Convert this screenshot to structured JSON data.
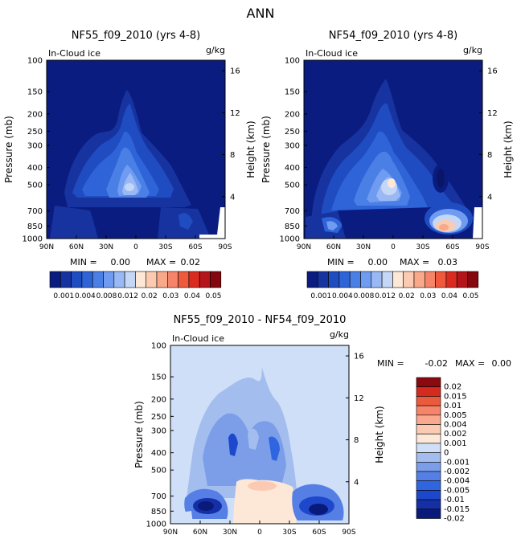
{
  "figure_title": "ANN",
  "units": "g/kg",
  "left_axis_title": "Pressure (mb)",
  "right_axis_title": "Height (km)",
  "colors": {
    "background_navy": "#0a1c80",
    "levels_abs": [
      "#0a1c80",
      "#1733a0",
      "#1f4cc0",
      "#2e64d8",
      "#4a7fe6",
      "#6f9bf0",
      "#9ab9f4",
      "#c5d7f6",
      "#fde7d6",
      "#fccab0",
      "#f9a98a",
      "#f6846a",
      "#ef5a3c",
      "#d92b20",
      "#b5141b",
      "#85080f"
    ],
    "levels_diff": [
      "#091a7a",
      "#1530a6",
      "#1e48cc",
      "#2f66e0",
      "#557fe4",
      "#7c9ee8",
      "#a3bdee",
      "#cfdff7",
      "#fde8d8",
      "#fccab2",
      "#fba98e",
      "#f5846a",
      "#ec5a3d",
      "#d42b1e",
      "#8a0a10"
    ]
  },
  "chart_data": [
    {
      "type": "heatmap",
      "title": "NF55_f09_2010 (yrs 4-8)",
      "subtitle": "In-Cloud ice",
      "xlabel": "",
      "ylabel": "Pressure (mb)",
      "y2label": "Height (km)",
      "x_ticks": [
        "90N",
        "60N",
        "30N",
        "0",
        "30S",
        "60S",
        "90S"
      ],
      "x_values": [
        90,
        60,
        30,
        0,
        -30,
        -60,
        -90
      ],
      "y_ticks": [
        100,
        150,
        200,
        250,
        300,
        400,
        500,
        700,
        850,
        1000
      ],
      "y_right_ticks": [
        16,
        12,
        8,
        4
      ],
      "ylim": [
        1000,
        100
      ],
      "stats": {
        "min_label": "MIN =",
        "min": "0.00",
        "max_label": "MAX =",
        "max": "0.02"
      },
      "colorbar_ticks": [
        "0.001",
        "0.004",
        "0.008",
        "0.012",
        "0.02",
        "0.03",
        "0.04",
        "0.05"
      ],
      "blobs": [
        {
          "lat": 0,
          "p": 500,
          "value": 0.012
        },
        {
          "lat": -20,
          "p": 700,
          "value": 0.004
        },
        {
          "lat": 60,
          "p": 700,
          "value": 0.003
        }
      ]
    },
    {
      "type": "heatmap",
      "title": "NF54_f09_2010 (yrs 4-8)",
      "subtitle": "In-Cloud ice",
      "xlabel": "",
      "ylabel": "Pressure (mb)",
      "y2label": "Height (km)",
      "x_ticks": [
        "90N",
        "60N",
        "30N",
        "0",
        "30S",
        "60S",
        "90S"
      ],
      "x_values": [
        90,
        60,
        30,
        0,
        -30,
        -60,
        -90
      ],
      "y_ticks": [
        100,
        150,
        200,
        250,
        300,
        400,
        500,
        700,
        850,
        1000
      ],
      "y_right_ticks": [
        16,
        12,
        8,
        4
      ],
      "ylim": [
        1000,
        100
      ],
      "stats": {
        "min_label": "MIN =",
        "min": "0.00",
        "max_label": "MAX =",
        "max": "0.03"
      },
      "colorbar_ticks": [
        "0.001",
        "0.004",
        "0.008",
        "0.012",
        "0.02",
        "0.03",
        "0.04",
        "0.05"
      ],
      "blobs": [
        {
          "lat": 0,
          "p": 500,
          "value": 0.02
        },
        {
          "lat": -60,
          "p": 850,
          "value": 0.03
        },
        {
          "lat": 60,
          "p": 800,
          "value": 0.008
        }
      ]
    },
    {
      "type": "heatmap",
      "title": "NF55_f09_2010 - NF54_f09_2010",
      "subtitle": "In-Cloud ice",
      "xlabel": "",
      "ylabel": "Pressure (mb)",
      "y2label": "Height (km)",
      "x_ticks": [
        "90N",
        "60N",
        "30N",
        "0",
        "30S",
        "60S",
        "90S"
      ],
      "x_values": [
        90,
        60,
        30,
        0,
        -30,
        -60,
        -90
      ],
      "y_ticks": [
        100,
        150,
        200,
        250,
        300,
        400,
        500,
        700,
        850,
        1000
      ],
      "y_right_ticks": [
        16,
        12,
        8,
        4
      ],
      "ylim": [
        1000,
        100
      ],
      "stats": {
        "min_label": "MIN =",
        "min": "-0.02",
        "max_label": "MAX =",
        "max": "0.00"
      },
      "colorbar_ticks": [
        "0.02",
        "0.015",
        "0.01",
        "0.005",
        "0.004",
        "0.002",
        "0.001",
        "0",
        "-0.001",
        "-0.002",
        "-0.004",
        "-0.005",
        "-0.01",
        "-0.015",
        "-0.02"
      ],
      "blobs": [
        {
          "lat": 60,
          "p": 850,
          "value": -0.015
        },
        {
          "lat": -55,
          "p": 850,
          "value": -0.02
        },
        {
          "lat": 0,
          "p": 700,
          "value": 0.002
        }
      ]
    }
  ]
}
